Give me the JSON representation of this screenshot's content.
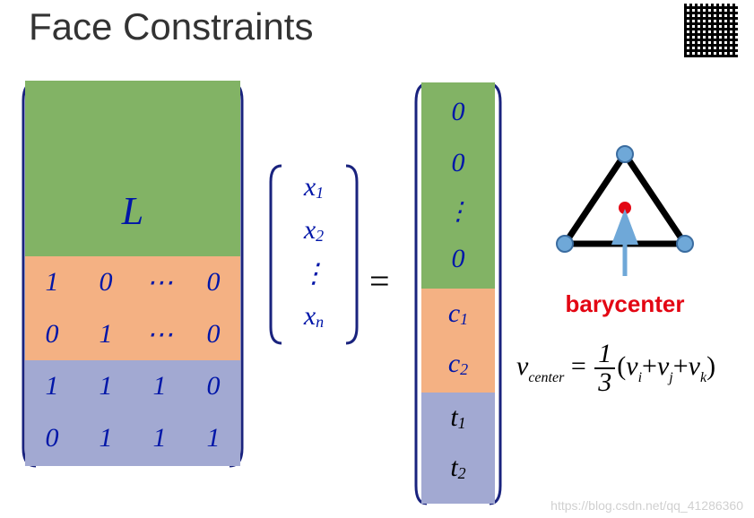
{
  "title": "Face Constraints",
  "colors": {
    "green_block": "#82b365",
    "orange_block": "#f4b183",
    "purple_block": "#a2a9d2",
    "matrix_delim": "#1a237e",
    "matrix_text": "#0016a8",
    "title_text": "#333333",
    "accent_red": "#e30613",
    "triangle_stroke": "#000000",
    "triangle_vertex": "#6fa8d8",
    "barycenter_dot": "#e30613",
    "arrow": "#6fa8d8",
    "watermark": "#d0d0d0",
    "background": "#ffffff"
  },
  "matrix_A": {
    "L_symbol": "L",
    "orange_rows": [
      [
        "1",
        "0",
        "⋯",
        "0"
      ],
      [
        "0",
        "1",
        "⋯",
        "0"
      ]
    ],
    "purple_rows": [
      [
        "1",
        "1",
        "1",
        "0"
      ],
      [
        "0",
        "1",
        "1",
        "1"
      ]
    ]
  },
  "vector_x": {
    "entries": [
      {
        "base": "x",
        "sub": "1"
      },
      {
        "base": "x",
        "sub": "2"
      },
      {
        "base": "⋮",
        "sub": ""
      },
      {
        "base": "x",
        "sub": "n"
      }
    ]
  },
  "equals": "=",
  "vector_rhs": {
    "green": [
      {
        "base": "0",
        "sub": ""
      },
      {
        "base": "0",
        "sub": ""
      },
      {
        "base": "⋮",
        "sub": ""
      },
      {
        "base": "0",
        "sub": ""
      }
    ],
    "orange": [
      {
        "base": "c",
        "sub": "1"
      },
      {
        "base": "c",
        "sub": "2"
      }
    ],
    "purple": [
      {
        "base": "t",
        "sub": "1"
      },
      {
        "base": "t",
        "sub": "2"
      }
    ]
  },
  "barycenter_label": "barycenter",
  "formula": {
    "lhs_base": "v",
    "lhs_sub": "center",
    "eq": "=",
    "frac_num": "1",
    "frac_den": "3",
    "open": "(",
    "t1b": "v",
    "t1s": "i",
    "p1": "+",
    "t2b": "v",
    "t2s": "j",
    "p2": "+",
    "t3b": "v",
    "t3s": "k",
    "close": ")"
  },
  "watermark": "https://blog.csdn.net/qq_41286360"
}
